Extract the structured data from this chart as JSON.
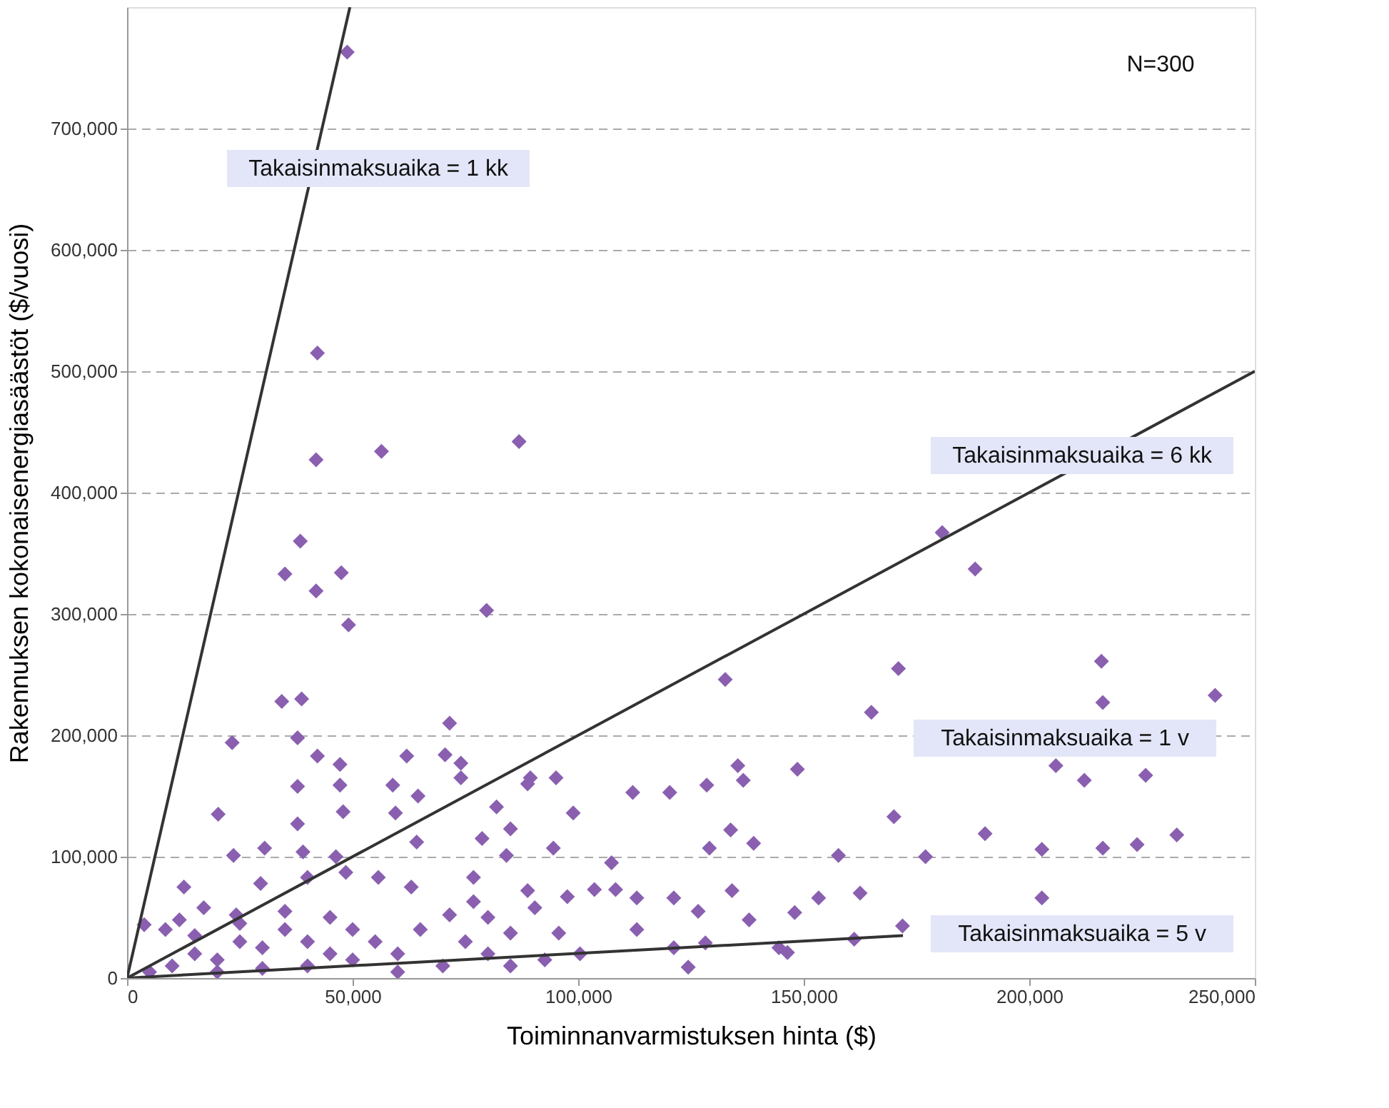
{
  "chart_data": {
    "type": "scatter",
    "xlabel": "Toiminnanvarmistuksen hinta ($)",
    "ylabel": "Rakennuksen kokonaisenergiasäästöt ($/vuosi)",
    "xlim": [
      0,
      250000
    ],
    "ylim": [
      0,
      800000
    ],
    "xticks": [
      0,
      {
        "value": 50000,
        "label": "50,000"
      },
      {
        "value": 100000,
        "label": "100,000"
      },
      {
        "value": 150000,
        "label": "150,000"
      },
      {
        "value": 200000,
        "label": "200,000"
      },
      {
        "value": 250000,
        "label": "250,000"
      }
    ],
    "yticks": [
      0,
      {
        "value": 100000,
        "label": "100,000"
      },
      {
        "value": 200000,
        "label": "200,000"
      },
      {
        "value": 300000,
        "label": "300,000"
      },
      {
        "value": 400000,
        "label": "400,000"
      },
      {
        "value": 500000,
        "label": "500,000"
      },
      {
        "value": 600000,
        "label": "600,000"
      },
      {
        "value": 700000,
        "label": "700,000"
      }
    ],
    "grid": "y",
    "annotations": [
      "N=300",
      "Takaisinmaksuaika = 1 kk",
      "Takaisinmaksuaika = 6 kk",
      "Takaisinmaksuaika = 1 v",
      "Takaisinmaksuaika = 5 v"
    ],
    "series": [
      {
        "marker": "diamond",
        "color": "#8a5fb0",
        "x": [
          48800,
          42200,
          41900,
          56400,
          86900,
          38400,
          35000,
          41900,
          47500,
          49100,
          79700,
          34300,
          38700,
          23300,
          37800,
          42200,
          47200,
          71500,
          62000,
          70500,
          74000,
          37800,
          47200,
          58900,
          64500,
          74000,
          20200,
          37800,
          47900,
          59500,
          81900,
          88800,
          78700,
          85000,
          23600,
          30500,
          39000,
          46300,
          64200,
          84100,
          12600,
          17000,
          29600,
          40000,
          48500,
          55700,
          63000,
          76800,
          76800,
          71500,
          80000,
          85000,
          3800,
          8500,
          11600,
          24200,
          5000,
          10000,
          15000,
          20000,
          25000,
          30000,
          35000,
          40000,
          45000,
          50000,
          55000,
          60000,
          20000,
          30000,
          40000,
          50000,
          60000,
          70000,
          25000,
          35000,
          45000,
          15000,
          65000,
          75000,
          80000,
          85000,
          180700,
          188000,
          132600,
          171000,
          216000,
          165000,
          216300,
          241200,
          89400,
          95100,
          98900,
          112100,
          120300,
          128500,
          135400,
          136600,
          148600,
          205900,
          212200,
          225800,
          94500,
          129100,
          133800,
          138900,
          170000,
          190200,
          157700,
          177000,
          202800,
          216300,
          223900,
          232700,
          107400,
          103600,
          108300,
          97600,
          88800,
          90400,
          113000,
          121200,
          126600,
          134100,
          153300,
          148000,
          162500,
          202800,
          113000,
          95700,
          137900,
          128200,
          121200,
          144500,
          146400,
          161200,
          171900,
          100400,
          92600,
          124400
        ],
        "values": [
          763000,
          515000,
          427000,
          434000,
          442000,
          360000,
          333000,
          319000,
          334000,
          291000,
          303000,
          228000,
          230000,
          194000,
          198000,
          183000,
          176000,
          210000,
          183000,
          184000,
          177000,
          158000,
          159000,
          159000,
          150000,
          165000,
          135000,
          127000,
          137000,
          136000,
          141000,
          160000,
          115000,
          123000,
          101000,
          107000,
          104000,
          100000,
          112000,
          101000,
          75000,
          58000,
          78000,
          83000,
          87000,
          83000,
          75000,
          83000,
          63000,
          52000,
          50000,
          37000,
          44000,
          40000,
          48000,
          52000,
          5000,
          10000,
          20000,
          15000,
          30000,
          25000,
          40000,
          30000,
          50000,
          40000,
          30000,
          20000,
          5000,
          8000,
          10000,
          15000,
          5000,
          10000,
          45000,
          55000,
          20000,
          35000,
          40000,
          30000,
          20000,
          10000,
          367000,
          337000,
          246000,
          255000,
          261000,
          219000,
          227000,
          233000,
          165000,
          165000,
          136000,
          153000,
          153000,
          159000,
          175000,
          163000,
          172000,
          175000,
          163000,
          167000,
          107000,
          107000,
          122000,
          111000,
          133000,
          119000,
          101000,
          100000,
          106000,
          107000,
          110000,
          118000,
          95000,
          73000,
          73000,
          67000,
          72000,
          58000,
          66000,
          66000,
          55000,
          72000,
          66000,
          54000,
          70000,
          66000,
          40000,
          37000,
          48000,
          29000,
          25000,
          25000,
          21000,
          32000,
          43000,
          20000,
          15000,
          9000
        ]
      },
      {
        "type": "line",
        "color": "#333333",
        "x": [
          0,
          49400
        ],
        "values": [
          0,
          800000
        ]
      },
      {
        "type": "line",
        "color": "#333333",
        "x": [
          0,
          250000
        ],
        "values": [
          0,
          500000
        ]
      },
      {
        "type": "line",
        "color": "#333333",
        "x": [
          0,
          172000
        ],
        "values": [
          0,
          35000
        ]
      }
    ]
  }
}
